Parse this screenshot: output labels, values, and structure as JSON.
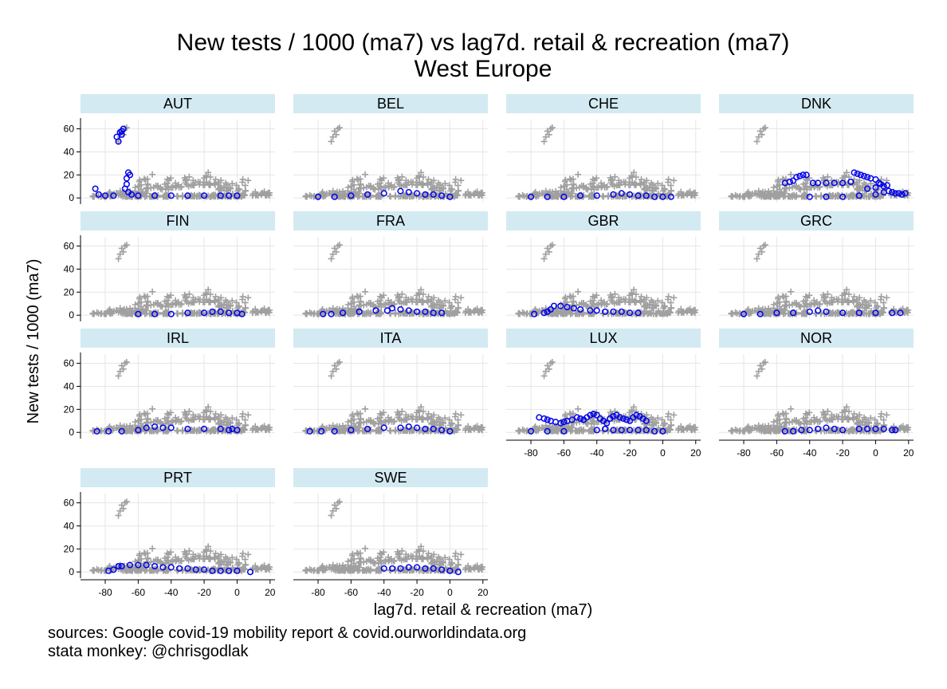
{
  "chart_data": {
    "type": "scatter",
    "title": "New tests / 1000 (ma7) vs lag7d. retail & recreation (ma7)",
    "subtitle": "West Europe",
    "xlabel": "lag7d. retail & recreation (ma7)",
    "ylabel": "New tests / 1000 (ma7)",
    "xlim": [
      -95,
      23
    ],
    "ylim": [
      -4,
      68
    ],
    "xticks": [
      -80,
      -60,
      -40,
      -20,
      0,
      20
    ],
    "yticks": [
      0,
      20,
      40,
      60
    ],
    "grid": true,
    "layout": "facets 4x4, 14 panels",
    "background_series": {
      "name": "all countries",
      "marker": "plus",
      "color": "#a0a0a0",
      "segments": [
        {
          "x_from": -88,
          "x_to": 5,
          "y_base": 1,
          "y_band": 2
        },
        {
          "x_from": -78,
          "x_to": -55,
          "y_base": 3,
          "y_band": 3
        },
        {
          "x_from": -62,
          "x_to": -40,
          "y_base": 7,
          "y_band": 10
        },
        {
          "x_from": -40,
          "x_to": -28,
          "y_base": 9,
          "y_band": 9
        },
        {
          "x_from": -28,
          "x_to": -12,
          "y_base": 11,
          "y_band": 12
        },
        {
          "x_from": -12,
          "x_to": 8,
          "y_base": 6,
          "y_band": 9
        },
        {
          "x_from": 8,
          "x_to": 20,
          "y_base": 2,
          "y_band": 3
        }
      ],
      "outliers": [
        {
          "x": -70,
          "y": 58
        },
        {
          "x": -68,
          "y": 60
        },
        {
          "x": -71,
          "y": 53
        },
        {
          "x": -72,
          "y": 49
        },
        {
          "x": -69,
          "y": 55
        },
        {
          "x": -67,
          "y": 61
        }
      ]
    },
    "panels": [
      {
        "name": "AUT",
        "points": [
          [
            -86,
            8
          ],
          [
            -84,
            3
          ],
          [
            -80,
            2
          ],
          [
            -75,
            2
          ],
          [
            -72,
            49
          ],
          [
            -73,
            53
          ],
          [
            -71,
            57
          ],
          [
            -70,
            58
          ],
          [
            -69,
            60
          ],
          [
            -70,
            55
          ],
          [
            -67,
            17
          ],
          [
            -66,
            22
          ],
          [
            -65,
            20
          ],
          [
            -67,
            12
          ],
          [
            -68,
            8
          ],
          [
            -66,
            5
          ],
          [
            -64,
            3
          ],
          [
            -60,
            2
          ],
          [
            -50,
            2
          ],
          [
            -40,
            2
          ],
          [
            -30,
            2
          ],
          [
            -20,
            2
          ],
          [
            -10,
            2
          ],
          [
            -5,
            2
          ],
          [
            0,
            2
          ]
        ]
      },
      {
        "name": "BEL",
        "points": [
          [
            -80,
            1
          ],
          [
            -70,
            1
          ],
          [
            -60,
            2
          ],
          [
            -50,
            3
          ],
          [
            -40,
            4
          ],
          [
            -30,
            6
          ],
          [
            -25,
            5
          ],
          [
            -20,
            4
          ],
          [
            -15,
            3
          ],
          [
            -10,
            3
          ],
          [
            -5,
            2
          ],
          [
            0,
            1
          ]
        ]
      },
      {
        "name": "CHE",
        "points": [
          [
            -80,
            1
          ],
          [
            -70,
            1
          ],
          [
            -60,
            1
          ],
          [
            -50,
            2
          ],
          [
            -40,
            2
          ],
          [
            -30,
            3
          ],
          [
            -25,
            4
          ],
          [
            -20,
            3
          ],
          [
            -15,
            2
          ],
          [
            -10,
            2
          ],
          [
            -5,
            1
          ],
          [
            0,
            1
          ],
          [
            5,
            1
          ]
        ]
      },
      {
        "name": "DNK",
        "points": [
          [
            -55,
            13
          ],
          [
            -52,
            14
          ],
          [
            -50,
            15
          ],
          [
            -48,
            18
          ],
          [
            -46,
            19
          ],
          [
            -44,
            20
          ],
          [
            -42,
            20
          ],
          [
            -38,
            13
          ],
          [
            -35,
            13
          ],
          [
            -30,
            13
          ],
          [
            -25,
            13
          ],
          [
            -20,
            13
          ],
          [
            -15,
            14
          ],
          [
            -13,
            22
          ],
          [
            -11,
            21
          ],
          [
            -9,
            20
          ],
          [
            -7,
            19
          ],
          [
            -5,
            18
          ],
          [
            -3,
            17
          ],
          [
            0,
            16
          ],
          [
            2,
            13
          ],
          [
            -40,
            1
          ],
          [
            -30,
            1
          ],
          [
            -20,
            1
          ],
          [
            -10,
            2
          ],
          [
            0,
            3
          ],
          [
            5,
            5
          ],
          [
            8,
            6
          ],
          [
            10,
            5
          ],
          [
            12,
            4
          ],
          [
            14,
            4
          ],
          [
            16,
            3
          ],
          [
            18,
            4
          ],
          [
            -5,
            8
          ],
          [
            0,
            9
          ],
          [
            5,
            10
          ],
          [
            3,
            12
          ],
          [
            7,
            11
          ]
        ]
      },
      {
        "name": "FIN",
        "points": [
          [
            -60,
            1
          ],
          [
            -50,
            1
          ],
          [
            -40,
            1
          ],
          [
            -30,
            2
          ],
          [
            -20,
            2
          ],
          [
            -15,
            3
          ],
          [
            -10,
            3
          ],
          [
            -5,
            2
          ],
          [
            0,
            2
          ],
          [
            3,
            1
          ]
        ]
      },
      {
        "name": "FRA",
        "points": [
          [
            -77,
            1
          ],
          [
            -72,
            1
          ],
          [
            -65,
            2
          ],
          [
            -55,
            3
          ],
          [
            -45,
            4
          ],
          [
            -38,
            4
          ],
          [
            -35,
            6
          ],
          [
            -30,
            5
          ],
          [
            -25,
            4
          ],
          [
            -20,
            3
          ],
          [
            -15,
            3
          ],
          [
            -10,
            2
          ],
          [
            -5,
            2
          ]
        ]
      },
      {
        "name": "GBR",
        "points": [
          [
            -78,
            1
          ],
          [
            -72,
            2
          ],
          [
            -70,
            3
          ],
          [
            -68,
            5
          ],
          [
            -66,
            8
          ],
          [
            -62,
            8
          ],
          [
            -58,
            7
          ],
          [
            -54,
            6
          ],
          [
            -50,
            5
          ],
          [
            -44,
            4
          ],
          [
            -40,
            4
          ],
          [
            -35,
            3
          ],
          [
            -30,
            3
          ],
          [
            -25,
            3
          ],
          [
            -20,
            2
          ],
          [
            -15,
            2
          ]
        ]
      },
      {
        "name": "GRC",
        "points": [
          [
            -80,
            1
          ],
          [
            -70,
            1
          ],
          [
            -60,
            2
          ],
          [
            -50,
            2
          ],
          [
            -40,
            3
          ],
          [
            -35,
            4
          ],
          [
            -30,
            3
          ],
          [
            -20,
            2
          ],
          [
            -10,
            2
          ],
          [
            0,
            2
          ],
          [
            10,
            2
          ],
          [
            15,
            2
          ]
        ]
      },
      {
        "name": "IRL",
        "points": [
          [
            -85,
            1
          ],
          [
            -78,
            1
          ],
          [
            -70,
            1
          ],
          [
            -60,
            2
          ],
          [
            -55,
            4
          ],
          [
            -50,
            5
          ],
          [
            -45,
            4
          ],
          [
            -40,
            4
          ],
          [
            -30,
            3
          ],
          [
            -20,
            3
          ],
          [
            -10,
            3
          ],
          [
            -5,
            2
          ],
          [
            -3,
            3
          ],
          [
            0,
            2
          ]
        ]
      },
      {
        "name": "ITA",
        "points": [
          [
            -85,
            1
          ],
          [
            -78,
            1
          ],
          [
            -70,
            1
          ],
          [
            -60,
            2
          ],
          [
            -50,
            3
          ],
          [
            -40,
            4
          ],
          [
            -30,
            4
          ],
          [
            -25,
            5
          ],
          [
            -20,
            4
          ],
          [
            -15,
            3
          ],
          [
            -10,
            3
          ],
          [
            -5,
            2
          ],
          [
            0,
            1
          ]
        ]
      },
      {
        "name": "LUX",
        "points": [
          [
            -80,
            1
          ],
          [
            -75,
            13
          ],
          [
            -72,
            12
          ],
          [
            -70,
            11
          ],
          [
            -68,
            10
          ],
          [
            -65,
            9
          ],
          [
            -62,
            8
          ],
          [
            -60,
            9
          ],
          [
            -58,
            10
          ],
          [
            -55,
            11
          ],
          [
            -52,
            13
          ],
          [
            -50,
            12
          ],
          [
            -48,
            11
          ],
          [
            -46,
            13
          ],
          [
            -44,
            15
          ],
          [
            -42,
            16
          ],
          [
            -40,
            15
          ],
          [
            -38,
            12
          ],
          [
            -36,
            10
          ],
          [
            -34,
            8
          ],
          [
            -32,
            12
          ],
          [
            -30,
            14
          ],
          [
            -28,
            15
          ],
          [
            -26,
            13
          ],
          [
            -24,
            12
          ],
          [
            -22,
            11
          ],
          [
            -20,
            10
          ],
          [
            -18,
            13
          ],
          [
            -16,
            15
          ],
          [
            -14,
            14
          ],
          [
            -12,
            12
          ],
          [
            -10,
            10
          ],
          [
            -40,
            2
          ],
          [
            -35,
            3
          ],
          [
            -30,
            2
          ],
          [
            -25,
            2
          ],
          [
            -20,
            2
          ],
          [
            -15,
            2
          ],
          [
            -10,
            2
          ],
          [
            -5,
            1
          ],
          [
            0,
            1
          ],
          [
            -60,
            1
          ],
          [
            -70,
            1
          ]
        ]
      },
      {
        "name": "NOR",
        "points": [
          [
            -55,
            1
          ],
          [
            -50,
            1
          ],
          [
            -45,
            2
          ],
          [
            -40,
            2
          ],
          [
            -35,
            3
          ],
          [
            -30,
            4
          ],
          [
            -25,
            3
          ],
          [
            -20,
            2
          ],
          [
            -10,
            3
          ],
          [
            -5,
            3
          ],
          [
            0,
            3
          ],
          [
            5,
            3
          ],
          [
            10,
            2
          ],
          [
            12,
            2
          ]
        ]
      },
      {
        "name": "PRT",
        "points": [
          [
            -78,
            1
          ],
          [
            -75,
            2
          ],
          [
            -72,
            5
          ],
          [
            -70,
            5
          ],
          [
            -65,
            6
          ],
          [
            -60,
            6
          ],
          [
            -55,
            6
          ],
          [
            -50,
            5
          ],
          [
            -45,
            4
          ],
          [
            -40,
            4
          ],
          [
            -35,
            3
          ],
          [
            -30,
            3
          ],
          [
            -25,
            2
          ],
          [
            -20,
            2
          ],
          [
            -15,
            1
          ],
          [
            -10,
            1
          ],
          [
            -5,
            1
          ],
          [
            0,
            1
          ],
          [
            8,
            0
          ]
        ]
      },
      {
        "name": "SWE",
        "points": [
          [
            -40,
            3
          ],
          [
            -35,
            3
          ],
          [
            -30,
            3
          ],
          [
            -25,
            4
          ],
          [
            -20,
            4
          ],
          [
            -15,
            3
          ],
          [
            -10,
            3
          ],
          [
            -5,
            2
          ],
          [
            0,
            1
          ],
          [
            5,
            0
          ]
        ]
      }
    ]
  },
  "notes": {
    "line1": "sources: Google covid-19 mobility report & covid.ourworldindata.org",
    "line2": "stata monkey: @chrisgodlak"
  },
  "colors": {
    "strip": "#d3eaf2",
    "foreground_marker": "#0000ee",
    "background_marker": "#a0a0a0",
    "grid": "#e6e6e6",
    "axis": "#000000"
  }
}
